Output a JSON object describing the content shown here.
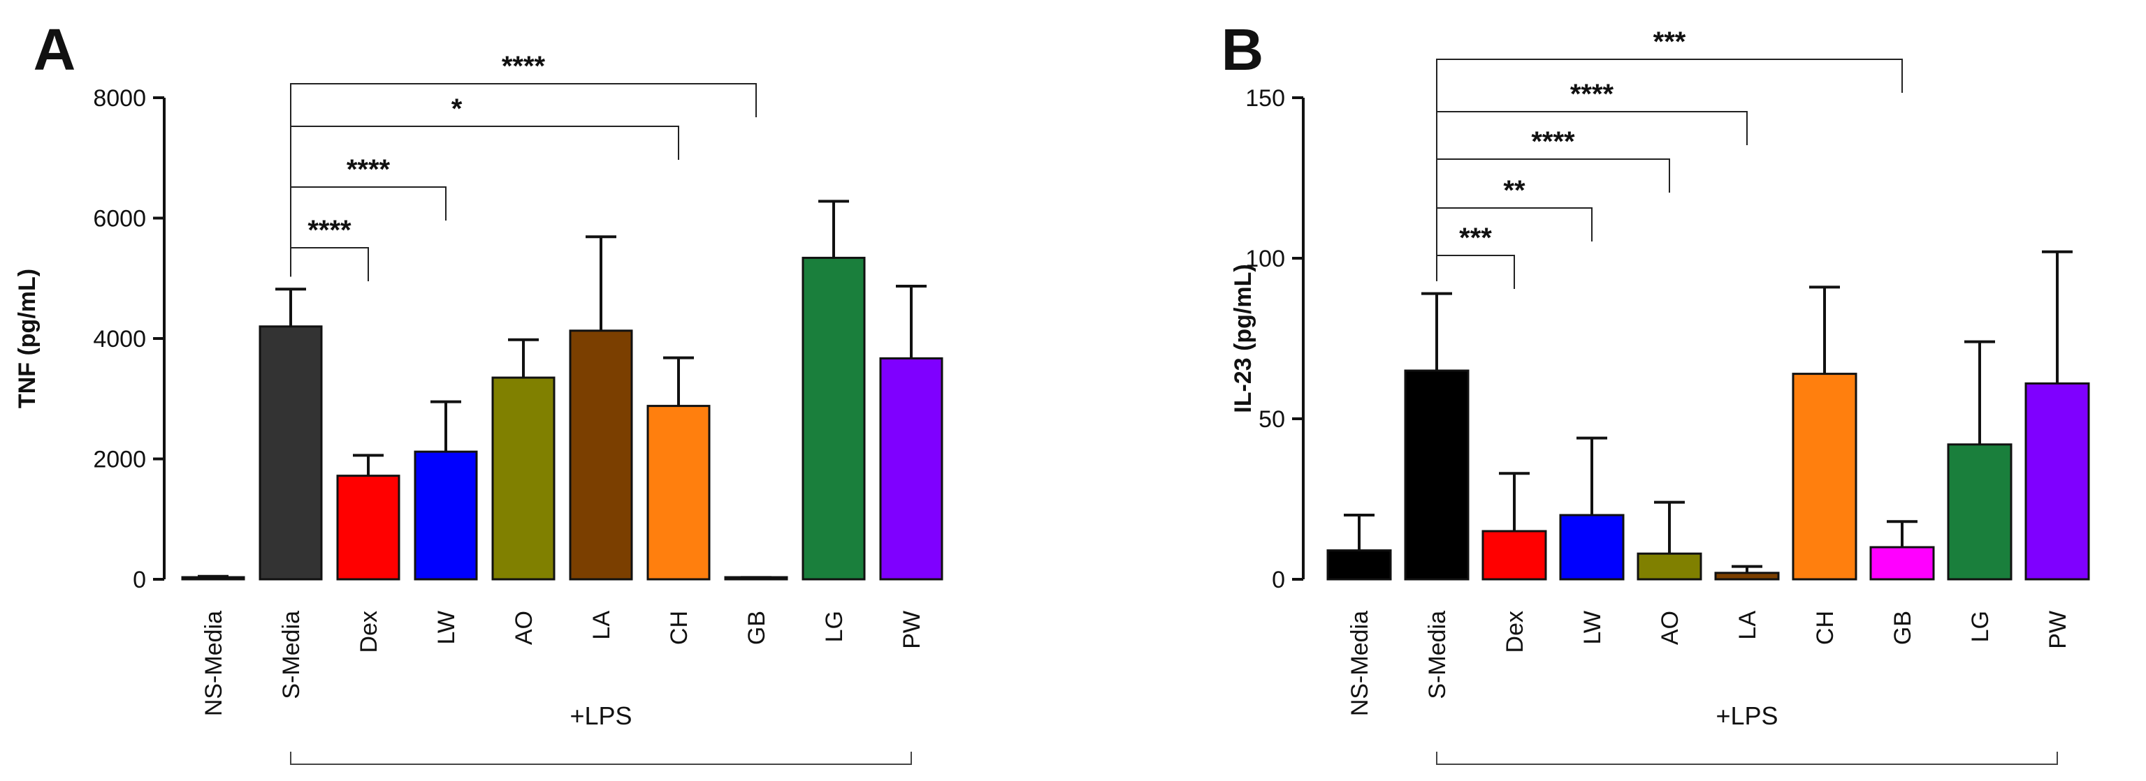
{
  "chart_data": [
    {
      "type": "bar",
      "panel": "A",
      "ylabel": "TNF (pg/mL)",
      "xlabel": "",
      "ylim": [
        0,
        8000
      ],
      "yticks": [
        0,
        2000,
        4000,
        6000,
        8000
      ],
      "ytick_labels": [
        "0",
        "2000",
        "4000",
        "6000",
        "8000"
      ],
      "categories": [
        "NS-Media",
        "S-Media",
        "Dex",
        "LW",
        "AO",
        "LA",
        "CH",
        "GB",
        "LG",
        "PW"
      ],
      "values": [
        30,
        4200,
        1720,
        2120,
        3350,
        4130,
        2880,
        20,
        5340,
        3670
      ],
      "errors": [
        20,
        620,
        340,
        830,
        630,
        1560,
        800,
        10,
        940,
        1200
      ],
      "colors": [
        "#000000",
        "#333333",
        "#ff0000",
        "#0000ff",
        "#808000",
        "#7b3f00",
        "#ff7f0e",
        "#ff00ff",
        "#1a7f3c",
        "#7f00ff"
      ],
      "group_label": "+LPS",
      "comparisons": [
        {
          "from": "S-Media",
          "to": "Dex",
          "label": "****"
        },
        {
          "from": "S-Media",
          "to": "LW",
          "label": "****"
        },
        {
          "from": "S-Media",
          "to": "CH",
          "label": "*"
        },
        {
          "from": "S-Media",
          "to": "GB",
          "label": "****"
        }
      ]
    },
    {
      "type": "bar",
      "panel": "B",
      "ylabel": "IL-23 (pg/mL)",
      "xlabel": "",
      "ylim": [
        0,
        150
      ],
      "yticks": [
        0,
        50,
        100,
        150
      ],
      "ytick_labels": [
        "0",
        "50",
        "100",
        "150"
      ],
      "categories": [
        "NS-Media",
        "S-Media",
        "Dex",
        "LW",
        "AO",
        "LA",
        "CH",
        "GB",
        "LG",
        "PW"
      ],
      "values": [
        9,
        65,
        15,
        20,
        8,
        2,
        64,
        10,
        42,
        61
      ],
      "errors": [
        11,
        24,
        18,
        24,
        16,
        2,
        27,
        8,
        32,
        41
      ],
      "colors": [
        "#000000",
        "#000000",
        "#ff0000",
        "#0000ff",
        "#808000",
        "#7b3f00",
        "#ff7f0e",
        "#ff00ff",
        "#1a7f3c",
        "#7f00ff"
      ],
      "group_label": "+LPS",
      "comparisons": [
        {
          "from": "S-Media",
          "to": "Dex",
          "label": "***"
        },
        {
          "from": "S-Media",
          "to": "LW",
          "label": "**"
        },
        {
          "from": "S-Media",
          "to": "AO",
          "label": "****"
        },
        {
          "from": "S-Media",
          "to": "LA",
          "label": "****"
        },
        {
          "from": "S-Media",
          "to": "GB",
          "label": "***"
        }
      ]
    }
  ]
}
